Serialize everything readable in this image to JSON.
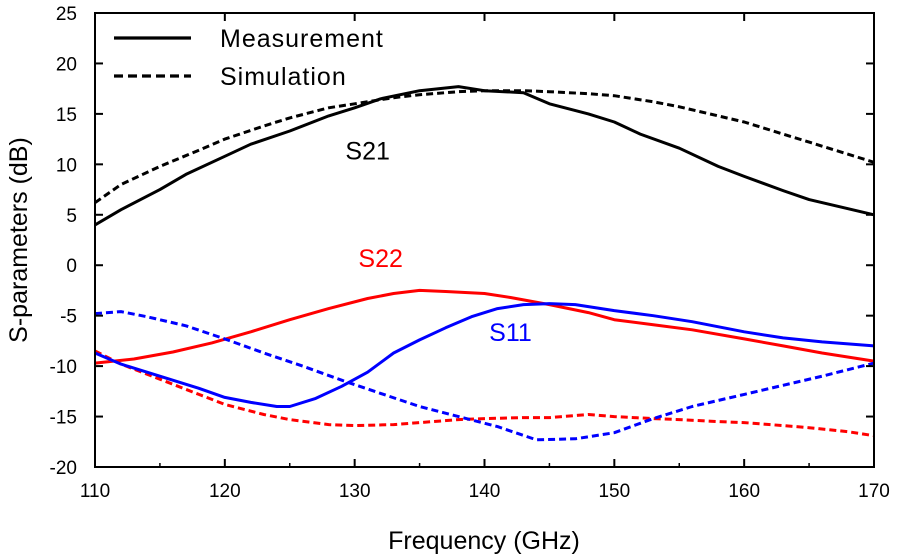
{
  "chart_data": {
    "type": "line",
    "xlabel": "Frequency (GHz)",
    "ylabel": "S-parameters (dB)",
    "xlim": [
      110,
      170
    ],
    "ylim": [
      -20,
      25
    ],
    "xticks": [
      110,
      120,
      130,
      140,
      150,
      160,
      170
    ],
    "yticks": [
      -20,
      -15,
      -10,
      -5,
      0,
      5,
      10,
      15,
      20,
      25
    ],
    "grid": false,
    "legend": {
      "placement": "top-left",
      "entries": [
        {
          "label": "Measurement",
          "style": "solid"
        },
        {
          "label": "Simulation",
          "style": "dashed"
        }
      ]
    },
    "annotations": [
      {
        "text": "S21",
        "x": 131,
        "y": 10.5,
        "color": "#000000"
      },
      {
        "text": "S22",
        "x": 132,
        "y": -0.2,
        "color": "#ff0000"
      },
      {
        "text": "S11",
        "x": 142,
        "y": -7.5,
        "color": "#0000ff"
      }
    ],
    "series": [
      {
        "param": "S21",
        "style": "solid",
        "color": "#000000",
        "x": [
          110,
          112,
          115,
          117,
          120,
          122,
          125,
          128,
          130,
          132,
          135,
          138,
          140,
          143,
          145,
          148,
          150,
          152,
          155,
          158,
          160,
          163,
          165,
          168,
          170
        ],
        "y": [
          4.0,
          5.5,
          7.5,
          9.0,
          10.8,
          12.0,
          13.3,
          14.8,
          15.6,
          16.5,
          17.3,
          17.7,
          17.3,
          17.1,
          16.0,
          15.0,
          14.2,
          13.0,
          11.6,
          9.8,
          8.8,
          7.4,
          6.5,
          5.6,
          5.0
        ]
      },
      {
        "param": "S21",
        "style": "dashed",
        "color": "#000000",
        "x": [
          110,
          112,
          115,
          118,
          120,
          123,
          125,
          128,
          130,
          133,
          135,
          138,
          140,
          143,
          145,
          148,
          150,
          153,
          155,
          158,
          160,
          163,
          165,
          168,
          170
        ],
        "y": [
          6.2,
          8.0,
          9.8,
          11.4,
          12.5,
          13.8,
          14.6,
          15.6,
          16.0,
          16.6,
          16.9,
          17.2,
          17.3,
          17.3,
          17.2,
          17.0,
          16.8,
          16.2,
          15.7,
          14.8,
          14.2,
          13.0,
          12.2,
          11.0,
          10.2
        ]
      },
      {
        "param": "S22",
        "style": "solid",
        "color": "#ff0000",
        "x": [
          110,
          113,
          116,
          119,
          122,
          125,
          128,
          131,
          133,
          135,
          137,
          140,
          142,
          145,
          148,
          150,
          153,
          156,
          160,
          163,
          166,
          170
        ],
        "y": [
          -9.7,
          -9.3,
          -8.6,
          -7.7,
          -6.6,
          -5.4,
          -4.3,
          -3.3,
          -2.8,
          -2.5,
          -2.6,
          -2.8,
          -3.2,
          -3.9,
          -4.7,
          -5.4,
          -5.9,
          -6.4,
          -7.3,
          -8.0,
          -8.7,
          -9.5
        ]
      },
      {
        "param": "S22",
        "style": "dashed",
        "color": "#ff0000",
        "x": [
          110,
          112,
          115,
          118,
          120,
          123,
          125,
          128,
          130,
          133,
          135,
          138,
          140,
          143,
          145,
          148,
          150,
          153,
          155,
          158,
          160,
          163,
          165,
          168,
          170
        ],
        "y": [
          -8.5,
          -9.8,
          -11.3,
          -12.8,
          -13.8,
          -14.8,
          -15.3,
          -15.8,
          -15.9,
          -15.8,
          -15.6,
          -15.3,
          -15.2,
          -15.1,
          -15.1,
          -14.8,
          -15.0,
          -15.2,
          -15.3,
          -15.5,
          -15.6,
          -15.9,
          -16.1,
          -16.5,
          -16.9
        ]
      },
      {
        "param": "S11",
        "style": "solid",
        "color": "#0000ff",
        "x": [
          110,
          112,
          115,
          118,
          120,
          122,
          124,
          125,
          127,
          129,
          131,
          133,
          135,
          137,
          139,
          141,
          143,
          145,
          147,
          150,
          153,
          156,
          160,
          163,
          166,
          170
        ],
        "y": [
          -8.7,
          -9.8,
          -11.0,
          -12.2,
          -13.1,
          -13.6,
          -14.0,
          -14.0,
          -13.2,
          -12.0,
          -10.6,
          -8.7,
          -7.4,
          -6.2,
          -5.1,
          -4.3,
          -3.9,
          -3.8,
          -3.9,
          -4.5,
          -5.0,
          -5.6,
          -6.6,
          -7.2,
          -7.6,
          -8.0
        ]
      },
      {
        "param": "S11",
        "style": "dashed",
        "color": "#0000ff",
        "x": [
          110,
          112,
          114,
          117,
          120,
          123,
          126,
          129,
          132,
          135,
          138,
          141,
          144,
          147,
          150,
          153,
          156,
          160,
          163,
          166,
          170
        ],
        "y": [
          -4.8,
          -4.6,
          -5.1,
          -6.0,
          -7.3,
          -8.7,
          -10.0,
          -11.4,
          -12.7,
          -14.0,
          -15.0,
          -16.0,
          -17.3,
          -17.2,
          -16.6,
          -15.2,
          -14.0,
          -12.8,
          -11.9,
          -11.0,
          -9.7
        ]
      }
    ]
  }
}
